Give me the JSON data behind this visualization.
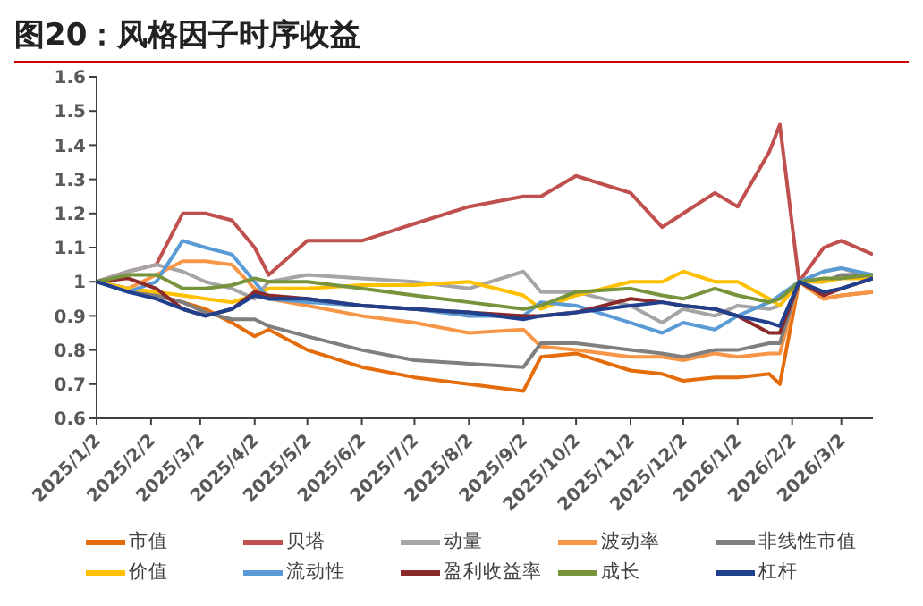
{
  "chart_data": {
    "type": "line",
    "title": "图20：风格因子时序收益",
    "x": [
      "2025-01-02",
      "2025-01-20",
      "2025-02-05",
      "2025-02-20",
      "2025-03-05",
      "2025-03-20",
      "2025-04-02",
      "2025-04-10",
      "2025-05-02",
      "2025-06-02",
      "2025-07-02",
      "2025-08-02",
      "2025-09-02",
      "2025-09-12",
      "2025-10-02",
      "2025-11-02",
      "2025-11-20",
      "2025-12-02",
      "2025-12-20",
      "2026-01-02",
      "2026-01-20",
      "2026-01-26",
      "2026-02-06",
      "2026-02-20",
      "2026-03-02",
      "2026-03-20"
    ],
    "series": [
      {
        "name": "市值",
        "color": "#e46c0a",
        "values": [
          1.0,
          0.98,
          0.96,
          0.94,
          0.92,
          0.88,
          0.84,
          0.86,
          0.8,
          0.75,
          0.72,
          0.7,
          0.68,
          0.78,
          0.79,
          0.74,
          0.73,
          0.71,
          0.72,
          0.72,
          0.73,
          0.7,
          1.0,
          0.95,
          0.96,
          0.97
        ]
      },
      {
        "name": "贝塔",
        "color": "#c0504d",
        "values": [
          1.0,
          1.03,
          1.05,
          1.2,
          1.2,
          1.18,
          1.1,
          1.02,
          1.12,
          1.12,
          1.17,
          1.22,
          1.25,
          1.25,
          1.31,
          1.26,
          1.16,
          1.2,
          1.26,
          1.22,
          1.38,
          1.46,
          1.0,
          1.1,
          1.12,
          1.08
        ]
      },
      {
        "name": "动量",
        "color": "#a5a5a5",
        "values": [
          1.0,
          1.03,
          1.05,
          1.03,
          1.0,
          0.98,
          0.95,
          1.0,
          1.02,
          1.01,
          1.0,
          0.98,
          1.03,
          0.97,
          0.97,
          0.93,
          0.88,
          0.92,
          0.9,
          0.93,
          0.92,
          0.93,
          1.0,
          1.03,
          1.04,
          1.01
        ]
      },
      {
        "name": "波动率",
        "color": "#f79646",
        "values": [
          1.0,
          0.98,
          1.02,
          1.06,
          1.06,
          1.05,
          0.98,
          0.95,
          0.93,
          0.9,
          0.88,
          0.85,
          0.86,
          0.81,
          0.8,
          0.78,
          0.78,
          0.77,
          0.79,
          0.78,
          0.79,
          0.79,
          1.0,
          0.95,
          0.96,
          0.97
        ]
      },
      {
        "name": "非线性市值",
        "color": "#7f7f7f",
        "values": [
          1.0,
          0.98,
          0.96,
          0.94,
          0.91,
          0.89,
          0.89,
          0.87,
          0.84,
          0.8,
          0.77,
          0.76,
          0.75,
          0.82,
          0.82,
          0.8,
          0.79,
          0.78,
          0.8,
          0.8,
          0.82,
          0.82,
          1.0,
          1.0,
          1.02,
          1.02
        ]
      },
      {
        "name": "价值",
        "color": "#ffc000",
        "values": [
          1.0,
          0.98,
          0.97,
          0.96,
          0.95,
          0.94,
          0.96,
          0.98,
          0.98,
          0.99,
          0.99,
          1.0,
          0.96,
          0.92,
          0.96,
          1.0,
          1.0,
          1.03,
          1.0,
          1.0,
          0.95,
          0.93,
          1.0,
          1.0,
          1.01,
          1.01
        ]
      },
      {
        "name": "流动性",
        "color": "#5b9bd5",
        "values": [
          1.0,
          0.97,
          1.0,
          1.12,
          1.1,
          1.08,
          1.0,
          0.95,
          0.94,
          0.93,
          0.92,
          0.9,
          0.9,
          0.94,
          0.93,
          0.88,
          0.85,
          0.88,
          0.86,
          0.9,
          0.94,
          0.96,
          1.0,
          1.03,
          1.04,
          1.02
        ]
      },
      {
        "name": "盈利收益率",
        "color": "#8b2a2a",
        "values": [
          1.0,
          1.01,
          0.98,
          0.92,
          0.9,
          0.92,
          0.97,
          0.96,
          0.95,
          0.93,
          0.92,
          0.91,
          0.9,
          0.9,
          0.91,
          0.95,
          0.94,
          0.93,
          0.92,
          0.9,
          0.85,
          0.85,
          1.0,
          0.96,
          0.98,
          1.01
        ]
      },
      {
        "name": "成长",
        "color": "#77933c",
        "values": [
          1.0,
          1.02,
          1.02,
          0.98,
          0.98,
          0.99,
          1.01,
          1.0,
          1.0,
          0.98,
          0.96,
          0.94,
          0.92,
          0.93,
          0.97,
          0.98,
          0.96,
          0.95,
          0.98,
          0.96,
          0.94,
          0.95,
          1.0,
          1.01,
          1.01,
          1.02
        ]
      },
      {
        "name": "杠杆",
        "color": "#203f8c",
        "values": [
          1.0,
          0.97,
          0.95,
          0.92,
          0.9,
          0.92,
          0.96,
          0.95,
          0.95,
          0.93,
          0.92,
          0.91,
          0.89,
          0.9,
          0.91,
          0.93,
          0.94,
          0.93,
          0.92,
          0.9,
          0.88,
          0.87,
          1.0,
          0.97,
          0.98,
          1.01
        ]
      }
    ],
    "xlim": [
      "2025-01-02",
      "2026-03-20"
    ],
    "xticks": [
      {
        "value": "2025-01-02",
        "label": "2025/1/2"
      },
      {
        "value": "2025-02-02",
        "label": "2025/2/2"
      },
      {
        "value": "2025-03-02",
        "label": "2025/3/2"
      },
      {
        "value": "2025-04-02",
        "label": "2025/4/2"
      },
      {
        "value": "2025-05-02",
        "label": "2025/5/2"
      },
      {
        "value": "2025-06-02",
        "label": "2025/6/2"
      },
      {
        "value": "2025-07-02",
        "label": "2025/7/2"
      },
      {
        "value": "2025-08-02",
        "label": "2025/8/2"
      },
      {
        "value": "2025-09-02",
        "label": "2025/9/2"
      },
      {
        "value": "2025-10-02",
        "label": "2025/10/2"
      },
      {
        "value": "2025-11-02",
        "label": "2025/11/2"
      },
      {
        "value": "2025-12-02",
        "label": "2025/12/2"
      },
      {
        "value": "2026-01-02",
        "label": "2026/1/2"
      },
      {
        "value": "2026-02-02",
        "label": "2026/2/2"
      },
      {
        "value": "2026-03-02",
        "label": "2026/3/2"
      }
    ],
    "ylim": [
      0.6,
      1.6
    ],
    "yticks": [
      0.6,
      0.7,
      0.8,
      0.9,
      1,
      1.1,
      1.2,
      1.3,
      1.4,
      1.5,
      1.6
    ],
    "grid": false,
    "legend": "bottom"
  }
}
